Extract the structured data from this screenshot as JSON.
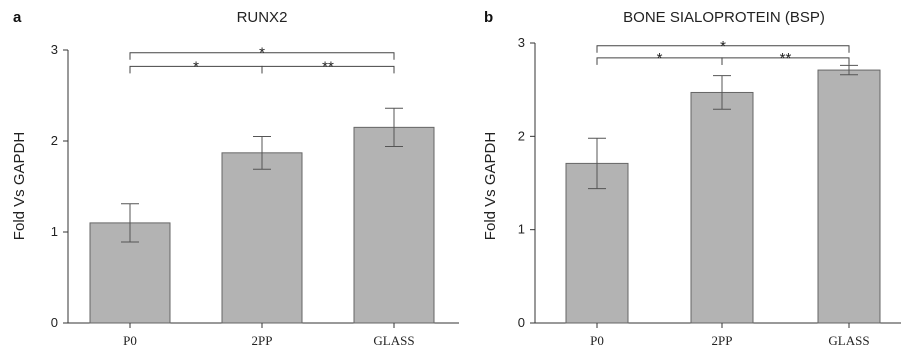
{
  "chart_data": [
    {
      "type": "bar",
      "panel": "a",
      "title": "RUNX2",
      "ylabel": "Fold Vs GAPDH",
      "xlabel": "",
      "categories": [
        "P0",
        "2PP",
        "GLASS"
      ],
      "values": [
        1.1,
        1.87,
        2.15
      ],
      "errors": [
        0.21,
        0.18,
        0.21
      ],
      "ylim": [
        0,
        3
      ],
      "yticks": [
        "0",
        "1",
        "2",
        "3"
      ],
      "brackets": [
        {
          "from": 0,
          "to": 2,
          "label": "*",
          "y": 2.97
        },
        {
          "from": 0,
          "to": 1,
          "label": "*",
          "y": 2.82
        },
        {
          "from": 1,
          "to": 2,
          "label": "**",
          "y": 2.82
        }
      ]
    },
    {
      "type": "bar",
      "panel": "b",
      "title": "BONE SIALOPROTEIN (BSP)",
      "ylabel": "Fold Vs GAPDH",
      "xlabel": "",
      "categories": [
        "P0",
        "2PP",
        "GLASS"
      ],
      "values": [
        1.71,
        2.47,
        2.71
      ],
      "errors": [
        0.27,
        0.18,
        0.05
      ],
      "ylim": [
        0,
        3
      ],
      "yticks": [
        "0",
        "1",
        "2",
        "3"
      ],
      "brackets": [
        {
          "from": 0,
          "to": 2,
          "label": "*",
          "y": 2.97
        },
        {
          "from": 0,
          "to": 1,
          "label": "*",
          "y": 2.84
        },
        {
          "from": 1,
          "to": 2,
          "label": "**",
          "y": 2.84
        }
      ]
    }
  ]
}
